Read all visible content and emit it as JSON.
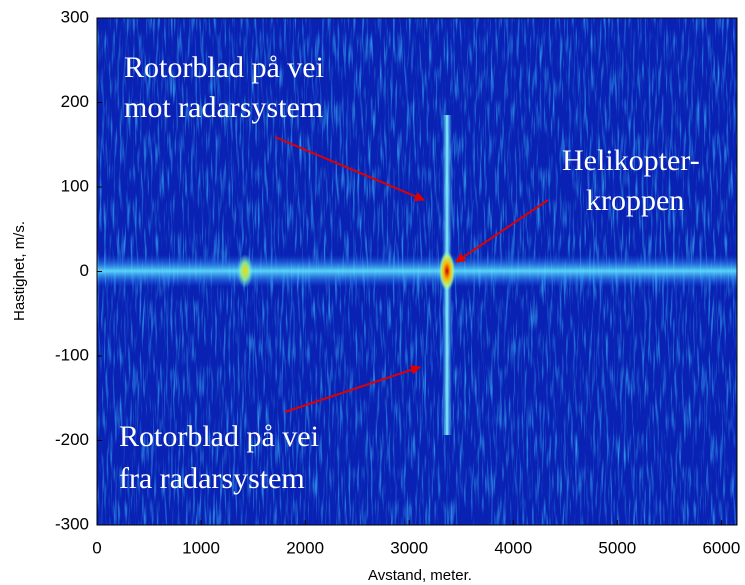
{
  "chart_data": {
    "type": "heatmap",
    "xlabel": "Avstand, meter.",
    "ylabel": "Hastighet, m/s.",
    "xlim": [
      0,
      6150
    ],
    "xticks": [
      0,
      1000,
      2000,
      3000,
      4000,
      5000,
      6000
    ],
    "ylim": [
      -300,
      300
    ],
    "yticks": [
      300,
      200,
      100,
      0,
      -100,
      -200,
      -300
    ],
    "annotations": [
      {
        "lines": [
          "Rotorblad på vei",
          "mot radarsystem"
        ]
      },
      {
        "lines": [
          "Helikopter-",
          "kroppen"
        ]
      },
      {
        "lines": [
          "Rotorblad på vei",
          "fra radarsystem"
        ]
      }
    ]
  }
}
